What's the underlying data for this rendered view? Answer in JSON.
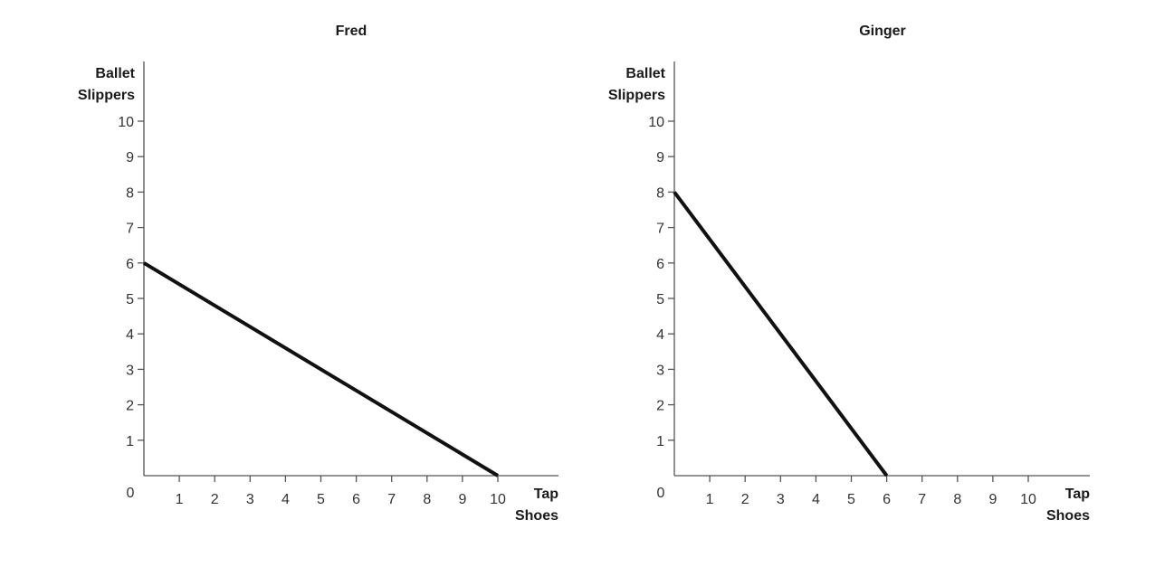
{
  "chart_data": [
    {
      "type": "line",
      "title": "Fred",
      "ylabel_lines": [
        "Ballet",
        "Slippers"
      ],
      "xlabel_lines": [
        "Tap",
        "Shoes"
      ],
      "origin_label": "0",
      "x_ticks": [
        "1",
        "2",
        "3",
        "4",
        "5",
        "6",
        "7",
        "8",
        "9",
        "10"
      ],
      "y_ticks": [
        "1",
        "2",
        "3",
        "4",
        "5",
        "6",
        "7",
        "8",
        "9",
        "10"
      ],
      "xlim": [
        0,
        10
      ],
      "ylim": [
        0,
        10
      ],
      "grid": false,
      "series": [
        {
          "x": [
            0,
            10
          ],
          "y": [
            6,
            0
          ]
        }
      ]
    },
    {
      "type": "line",
      "title": "Ginger",
      "ylabel_lines": [
        "Ballet",
        "Slippers"
      ],
      "xlabel_lines": [
        "Tap",
        "Shoes"
      ],
      "origin_label": "0",
      "x_ticks": [
        "1",
        "2",
        "3",
        "4",
        "5",
        "6",
        "7",
        "8",
        "9",
        "10"
      ],
      "y_ticks": [
        "1",
        "2",
        "3",
        "4",
        "5",
        "6",
        "7",
        "8",
        "9",
        "10"
      ],
      "xlim": [
        0,
        10
      ],
      "ylim": [
        0,
        10
      ],
      "grid": false,
      "series": [
        {
          "x": [
            0,
            6
          ],
          "y": [
            8,
            0
          ]
        }
      ]
    }
  ],
  "colors": {
    "line": "#111111",
    "axis": "#555555",
    "text": "#1a1a1a"
  }
}
